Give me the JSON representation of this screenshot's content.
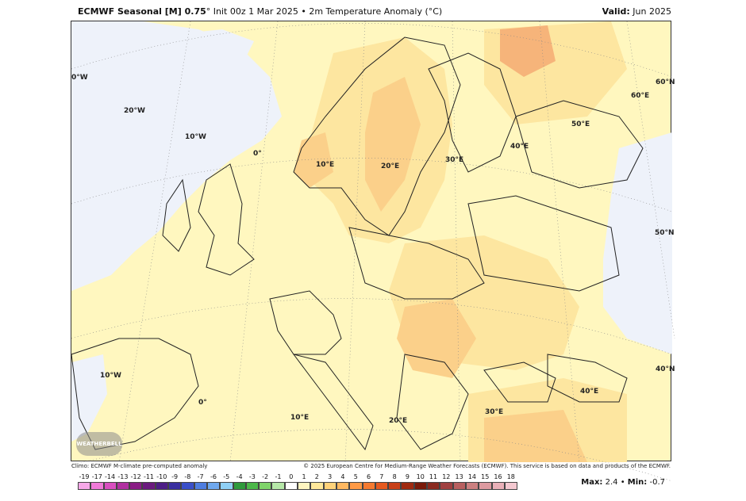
{
  "header": {
    "model": "ECMWF Seasonal [M] 0.75",
    "deg": "°",
    "rest": " Init 00z 1 Mar 2025 • 2m Temperature Anomaly (°C)",
    "valid_label": "Valid:",
    "valid_value": " Jun 2025"
  },
  "map": {
    "region": "Europe",
    "longitude_labels": [
      "0°W",
      "20°W",
      "10°W",
      "0°",
      "10°E",
      "20°E",
      "30°E",
      "40°E",
      "50°E",
      "60°E",
      "10°W",
      "0°",
      "10°E",
      "20°E",
      "30°E",
      "40°E"
    ],
    "latitude_labels": [
      "60°N",
      "50°N",
      "40°N"
    ],
    "logo_text": "WEATHERBELL"
  },
  "footer": {
    "climo": "Climo: ECMWF M-climate pre-computed anomaly",
    "credit": "© 2025 European Centre for Medium-Range Weather Forecasts (ECMWF). This service is based on data and products of the ECMWF.",
    "max_label": "Max:",
    "max_value": "2.4",
    "sep": " • ",
    "min_label": "Min:",
    "min_value": "-0.7"
  },
  "colorbar": {
    "ticks": [
      "-19",
      "-17",
      "-14",
      "-13",
      "-12",
      "-11",
      "-10",
      "-9",
      "-8",
      "-7",
      "-6",
      "-5",
      "-4",
      "-3",
      "-2",
      "-1",
      "0",
      "1",
      "2",
      "3",
      "4",
      "5",
      "6",
      "7",
      "8",
      "9",
      "10",
      "11",
      "12",
      "13",
      "14",
      "15",
      "16",
      "18"
    ],
    "colors": [
      "#f7a8e8",
      "#f07ad8",
      "#d94fc0",
      "#b030a0",
      "#8a1d85",
      "#6b1a7e",
      "#4d1e86",
      "#3a2fa0",
      "#3a4fc8",
      "#4f7ee0",
      "#6fa8ee",
      "#8fd0f5",
      "#2f9a3c",
      "#4cb84a",
      "#7fd46a",
      "#b6e8a8",
      "#ffffff",
      "#fff5c0",
      "#ffe89a",
      "#ffd27a",
      "#ffb860",
      "#ff9a45",
      "#f57a30",
      "#e65a20",
      "#c84018",
      "#a02a10",
      "#7a1a0a",
      "#8a2a20",
      "#a04040",
      "#b86060",
      "#cc8080",
      "#dd9aa0",
      "#eab0b8",
      "#f4c8d0"
    ]
  },
  "colors": {
    "anomaly_neutral": "#fff7bf",
    "anomaly_cool": "#eef2fa",
    "anomaly_warm": "#fde6a0",
    "anomaly_warmer": "#fbd08a",
    "anomaly_warmest": "#f6b47a"
  }
}
